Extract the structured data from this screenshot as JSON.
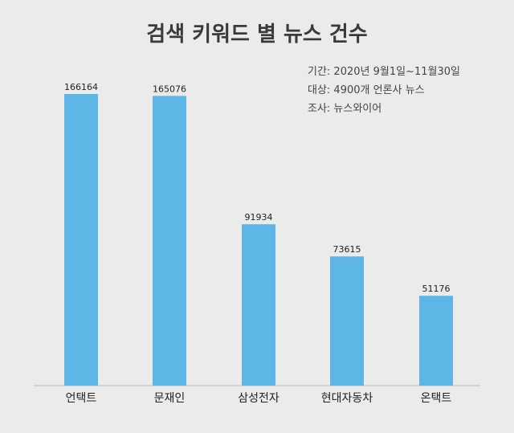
{
  "chart_data": {
    "type": "bar",
    "title": "검색 키워드 별 뉴스 건수",
    "categories": [
      "언택트",
      "문재인",
      "삼성전자",
      "현대자동차",
      "온택트"
    ],
    "values": [
      166164,
      165076,
      91934,
      73615,
      51176
    ],
    "xlabel": "",
    "ylabel": "",
    "ylim": [
      0,
      166164
    ],
    "grid": false,
    "legend": "none",
    "annotations": [
      "기간: 2020년 9월1일~11월30일",
      "대상: 4900개 언론사 뉴스",
      "조사: 뉴스와이어"
    ],
    "colors": {
      "bar": "#5eb6e6",
      "axis": "#bdbdbd",
      "label": "#222222",
      "background": "#ebebeb"
    }
  }
}
